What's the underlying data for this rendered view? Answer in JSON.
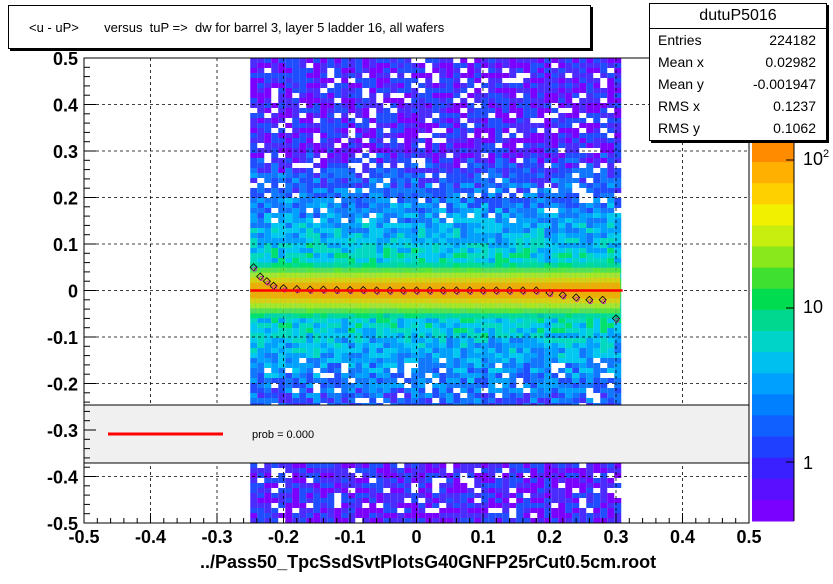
{
  "title": "<u - uP>       versus  tuP =>  dw for barrel 3, layer 5 ladder 16, all wafers",
  "xlabel": "../Pass50_TpcSsdSvtPlotsG40GNFP25rCut0.5cm.root",
  "stats": {
    "name": "dutuP5016",
    "rows": [
      {
        "key": "Entries",
        "value": "224182"
      },
      {
        "key": "Mean x",
        "value": "0.02982"
      },
      {
        "key": "Mean y",
        "value": "-0.001947"
      },
      {
        "key": "RMS x",
        "value": "0.1237"
      },
      {
        "key": "RMS y",
        "value": "0.1062"
      }
    ]
  },
  "legend": {
    "prob_text": "prob = 0.000",
    "line_color": "#ff0000"
  },
  "colorbar": {
    "labels": [
      "10^2",
      "10",
      "1"
    ],
    "log_scale": true
  },
  "chart_data": {
    "type": "heatmap",
    "title": "<u - uP>       versus  tuP =>  dw for barrel 3, layer 5 ladder 16, all wafers",
    "xlabel": "../Pass50_TpcSsdSvtPlotsG40GNFP25rCut0.5cm.root",
    "ylabel": "",
    "xlim": [
      -0.5,
      0.5
    ],
    "ylim": [
      -0.5,
      0.5
    ],
    "x_ticks": [
      "-0.5",
      "-0.4",
      "-0.3",
      "-0.2",
      "-0.1",
      "0",
      "0.1",
      "0.2",
      "0.3",
      "0.4",
      "0.5"
    ],
    "y_ticks": [
      "-0.5",
      "-0.4",
      "-0.3",
      "-0.2",
      "-0.1",
      "0",
      "0.1",
      "0.2",
      "0.3",
      "0.4",
      "0.5"
    ],
    "grid": true,
    "data_x_range": [
      -0.25,
      0.3
    ],
    "band_center_y": 0.0,
    "band_halfwidth_y": 0.06,
    "fit_line": {
      "x": [
        -0.25,
        0.31
      ],
      "y": [
        0.0,
        0.0
      ],
      "color": "#ff0000"
    },
    "profile_points": {
      "x": [
        -0.245,
        -0.235,
        -0.225,
        -0.215,
        -0.2,
        -0.18,
        -0.16,
        -0.14,
        -0.12,
        -0.1,
        -0.08,
        -0.06,
        -0.04,
        -0.02,
        0.0,
        0.02,
        0.04,
        0.06,
        0.08,
        0.1,
        0.12,
        0.14,
        0.16,
        0.18,
        0.2,
        0.22,
        0.24,
        0.26,
        0.28,
        0.3
      ],
      "y": [
        0.05,
        0.03,
        0.02,
        0.01,
        0.005,
        0.003,
        0.002,
        0.002,
        0.001,
        0.001,
        0.001,
        0.0,
        0.0,
        0.0,
        0.0,
        0.0,
        0.0,
        0.0,
        0.0,
        0.0,
        0.0,
        0.0,
        0.0,
        0.0,
        -0.005,
        -0.01,
        -0.015,
        -0.02,
        -0.02,
        -0.06
      ]
    },
    "colors": {
      "low": "#6a00ff",
      "mid": "#00c8ff",
      "high": "#ff9900"
    }
  }
}
